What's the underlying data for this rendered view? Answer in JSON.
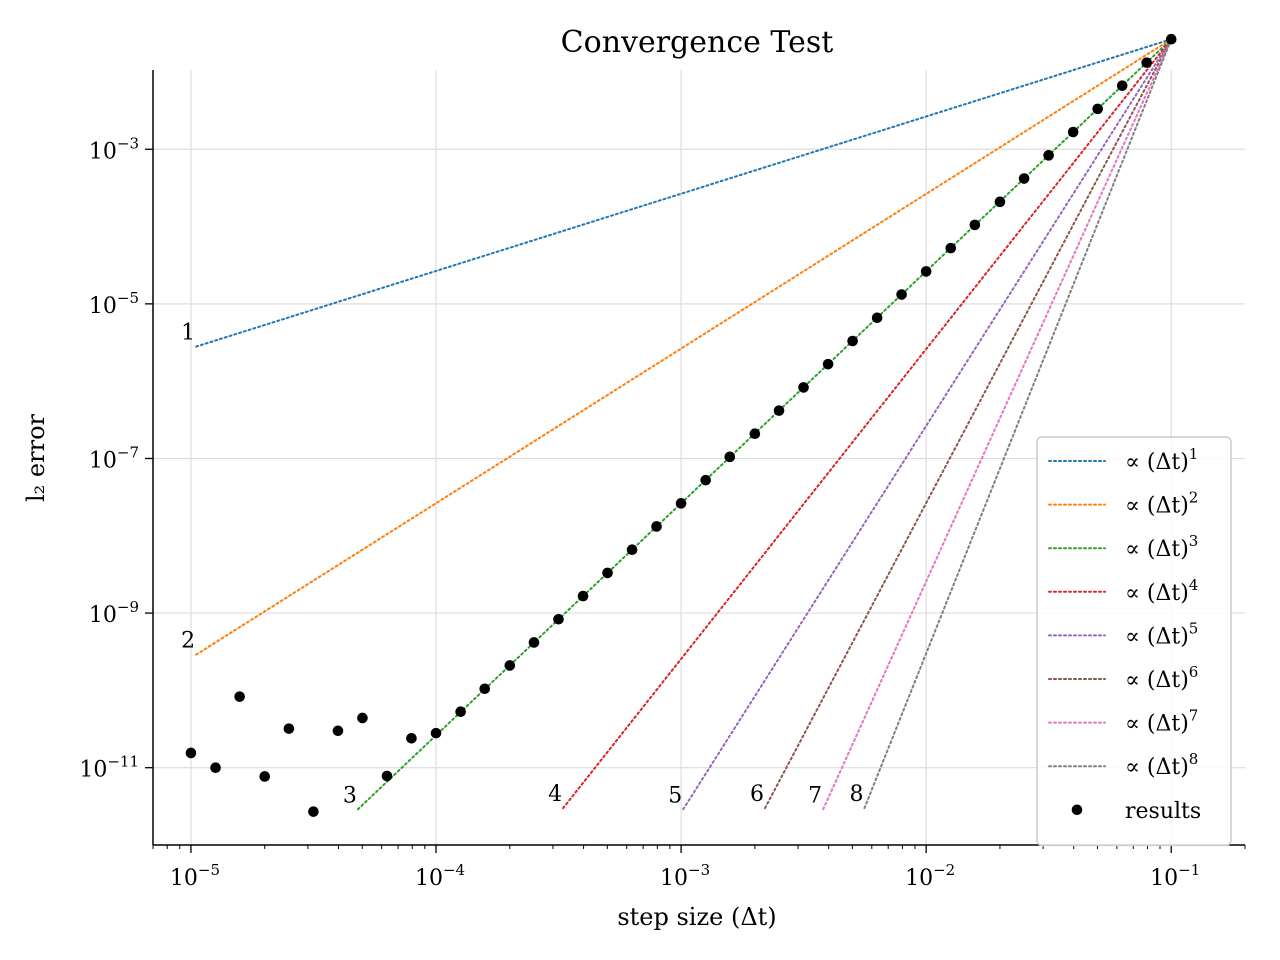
{
  "chart_data": {
    "type": "scatter",
    "title": "Convergence Test",
    "xlabel": "step size (Δt)",
    "ylabel": "l₂ error",
    "x_scale": "log",
    "y_scale": "log",
    "xlim": [
      7e-06,
      0.2
    ],
    "ylim": [
      1e-12,
      0.0106
    ],
    "grid": true,
    "legend_position": "bottom-right",
    "x_ticks": [
      {
        "value": 1e-05,
        "base": "10",
        "exp": "−5"
      },
      {
        "value": 0.0001,
        "base": "10",
        "exp": "−4"
      },
      {
        "value": 0.001,
        "base": "10",
        "exp": "−3"
      },
      {
        "value": 0.01,
        "base": "10",
        "exp": "−2"
      },
      {
        "value": 0.1,
        "base": "10",
        "exp": "−1"
      }
    ],
    "y_ticks": [
      {
        "value": 1e-11,
        "base": "10",
        "exp": "−11"
      },
      {
        "value": 1e-09,
        "base": "10",
        "exp": "−9"
      },
      {
        "value": 1e-07,
        "base": "10",
        "exp": "−7"
      },
      {
        "value": 1e-05,
        "base": "10",
        "exp": "−5"
      },
      {
        "value": 0.001,
        "base": "10",
        "exp": "−3"
      }
    ],
    "reference_lines": [
      {
        "order": 1,
        "legend": "∝ (Δt)",
        "legend_exp": "1",
        "label": "1",
        "color": "#1f77b4",
        "x": [
          1.05e-05,
          0.1
        ],
        "y": [
          2.8e-06,
          0.0265
        ]
      },
      {
        "order": 2,
        "legend": "∝ (Δt)",
        "legend_exp": "2",
        "label": "2",
        "color": "#ff7f0e",
        "x": [
          1.05e-05,
          0.1
        ],
        "y": [
          2.9e-10,
          0.0265
        ]
      },
      {
        "order": 3,
        "legend": "∝ (Δt)",
        "legend_exp": "3",
        "label": "3",
        "color": "#2ca02c",
        "x": [
          4.8e-05,
          0.1
        ],
        "y": [
          2.9e-12,
          0.0265
        ]
      },
      {
        "order": 4,
        "legend": "∝ (Δt)",
        "legend_exp": "4",
        "label": "4",
        "color": "#d62728",
        "x": [
          0.00033,
          0.1
        ],
        "y": [
          3e-12,
          0.0265
        ]
      },
      {
        "order": 5,
        "legend": "∝ (Δt)",
        "legend_exp": "5",
        "label": "5",
        "color": "#9467bd",
        "x": [
          0.00102,
          0.1
        ],
        "y": [
          2.9e-12,
          0.0265
        ]
      },
      {
        "order": 6,
        "legend": "∝ (Δt)",
        "legend_exp": "6",
        "label": "6",
        "color": "#8c564b",
        "x": [
          0.0022,
          0.1
        ],
        "y": [
          3e-12,
          0.0265
        ]
      },
      {
        "order": 7,
        "legend": "∝ (Δt)",
        "legend_exp": "7",
        "label": "7",
        "color": "#e377c2",
        "x": [
          0.0038,
          0.1
        ],
        "y": [
          2.9e-12,
          0.0265
        ]
      },
      {
        "order": 8,
        "legend": "∝ (Δt)",
        "legend_exp": "8",
        "label": "8",
        "color": "#7f7f7f",
        "x": [
          0.0056,
          0.1
        ],
        "y": [
          3e-12,
          0.0265
        ]
      }
    ],
    "results": {
      "legend": "results",
      "color": "#000000",
      "x": [
        0.1,
        0.0794,
        0.0631,
        0.0501,
        0.0398,
        0.0316,
        0.0251,
        0.02,
        0.0158,
        0.0126,
        0.01,
        0.00794,
        0.00631,
        0.00501,
        0.00398,
        0.00316,
        0.00251,
        0.002,
        0.00158,
        0.00126,
        0.001,
        0.000794,
        0.000631,
        0.000501,
        0.000398,
        0.000316,
        0.000251,
        0.0002,
        0.000158,
        0.000126,
        0.0001,
        7.94e-05,
        6.31e-05,
        5.01e-05,
        3.98e-05,
        3.16e-05,
        2.51e-05,
        2e-05,
        1.58e-05,
        1.26e-05,
        1e-05
      ],
      "y": [
        0.0265,
        0.0132,
        0.00665,
        0.00333,
        0.00167,
        0.000834,
        0.000418,
        0.000209,
        0.000105,
        5.26e-05,
        2.63e-05,
        1.32e-05,
        6.61e-06,
        3.31e-06,
        1.66e-06,
        8.31e-07,
        4.16e-07,
        2.09e-07,
        1.05e-07,
        5.24e-08,
        2.63e-08,
        1.32e-08,
        6.6e-09,
        3.31e-09,
        1.66e-09,
        8.32e-10,
        4.17e-10,
        2.1e-10,
        1.05e-10,
        5.3e-11,
        2.8e-11,
        2.4e-11,
        7.8e-12,
        4.4e-11,
        3e-11,
        2.7e-12,
        3.2e-11,
        7.7e-12,
        8.3e-11,
        1e-11,
        1.55e-11
      ]
    }
  }
}
